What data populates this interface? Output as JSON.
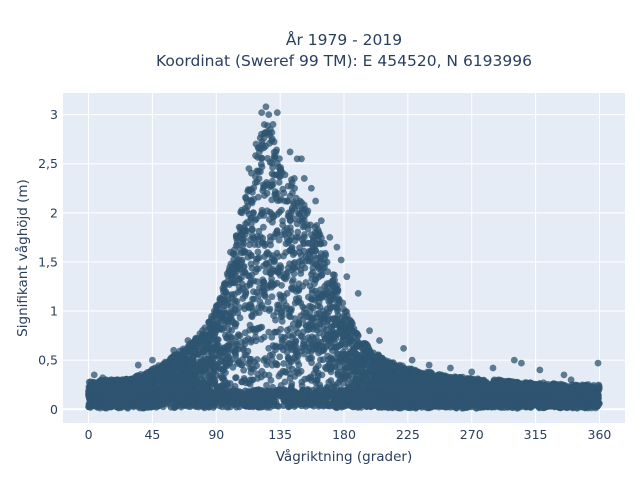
{
  "chart_data": {
    "type": "scatter",
    "title_line1": "År 1979 - 2019",
    "title_line2": "Koordinat (Sweref 99 TM): E 454520, N 6193996",
    "xlabel": "Vågriktning (grader)",
    "ylabel": "Signifikant våghöjd (m)",
    "xlim": [
      -18,
      378
    ],
    "ylim": [
      -0.14,
      3.22
    ],
    "xticks": [
      0,
      45,
      90,
      135,
      180,
      225,
      270,
      315,
      360
    ],
    "yticks": [
      0,
      0.5,
      1,
      1.5,
      2,
      2.5,
      3
    ],
    "ytick_labels": [
      "0",
      "0,5",
      "1",
      "1,5",
      "2",
      "2,5",
      "3"
    ],
    "grid": true,
    "background": "#e5ecf6",
    "marker_color": "#2e5470",
    "envelope": {
      "x": [
        0,
        10,
        20,
        30,
        40,
        50,
        60,
        70,
        80,
        90,
        95,
        100,
        105,
        110,
        115,
        120,
        125,
        130,
        135,
        140,
        145,
        150,
        155,
        160,
        165,
        170,
        175,
        180,
        190,
        200,
        210,
        220,
        230,
        240,
        250,
        260,
        270,
        280,
        290,
        300,
        310,
        320,
        330,
        340,
        350,
        360
      ],
      "ymax": [
        0.28,
        0.3,
        0.3,
        0.32,
        0.38,
        0.45,
        0.55,
        0.65,
        0.8,
        1.05,
        1.25,
        1.5,
        1.85,
        2.2,
        2.5,
        2.75,
        2.95,
        2.85,
        2.6,
        2.4,
        2.3,
        2.15,
        2.05,
        1.9,
        1.75,
        1.5,
        1.3,
        1.05,
        0.75,
        0.6,
        0.5,
        0.45,
        0.4,
        0.38,
        0.35,
        0.33,
        0.32,
        0.3,
        0.3,
        0.28,
        0.27,
        0.27,
        0.26,
        0.25,
        0.25,
        0.25
      ]
    },
    "highlight_points": [
      {
        "x": 125,
        "y": 3.08
      },
      {
        "x": 122,
        "y": 3.02
      },
      {
        "x": 127,
        "y": 3.0
      },
      {
        "x": 133,
        "y": 3.02
      },
      {
        "x": 130,
        "y": 2.9
      },
      {
        "x": 142,
        "y": 2.62
      },
      {
        "x": 147,
        "y": 2.55
      },
      {
        "x": 150,
        "y": 2.55
      },
      {
        "x": 145,
        "y": 2.35
      },
      {
        "x": 152,
        "y": 2.35
      },
      {
        "x": 157,
        "y": 2.25
      },
      {
        "x": 160,
        "y": 2.12
      },
      {
        "x": 164,
        "y": 1.92
      },
      {
        "x": 170,
        "y": 1.75
      },
      {
        "x": 175,
        "y": 1.65
      },
      {
        "x": 178,
        "y": 1.52
      },
      {
        "x": 182,
        "y": 1.35
      },
      {
        "x": 190,
        "y": 1.18
      },
      {
        "x": 198,
        "y": 0.8
      },
      {
        "x": 222,
        "y": 0.62
      },
      {
        "x": 205,
        "y": 0.7
      },
      {
        "x": 300,
        "y": 0.5
      },
      {
        "x": 305,
        "y": 0.47
      },
      {
        "x": 318,
        "y": 0.4
      },
      {
        "x": 359,
        "y": 0.47
      },
      {
        "x": 335,
        "y": 0.35
      },
      {
        "x": 340,
        "y": 0.3
      },
      {
        "x": 4,
        "y": 0.35
      },
      {
        "x": 10,
        "y": 0.32
      },
      {
        "x": 20,
        "y": 0.3
      },
      {
        "x": 35,
        "y": 0.45
      },
      {
        "x": 45,
        "y": 0.5
      },
      {
        "x": 60,
        "y": 0.6
      },
      {
        "x": 70,
        "y": 0.7
      },
      {
        "x": 85,
        "y": 0.88
      },
      {
        "x": 95,
        "y": 1.2
      },
      {
        "x": 100,
        "y": 1.6
      },
      {
        "x": 108,
        "y": 2.0
      },
      {
        "x": 113,
        "y": 2.45
      },
      {
        "x": 118,
        "y": 2.7
      },
      {
        "x": 240,
        "y": 0.45
      },
      {
        "x": 255,
        "y": 0.42
      },
      {
        "x": 270,
        "y": 0.38
      },
      {
        "x": 285,
        "y": 0.42
      },
      {
        "x": 228,
        "y": 0.5
      }
    ]
  }
}
